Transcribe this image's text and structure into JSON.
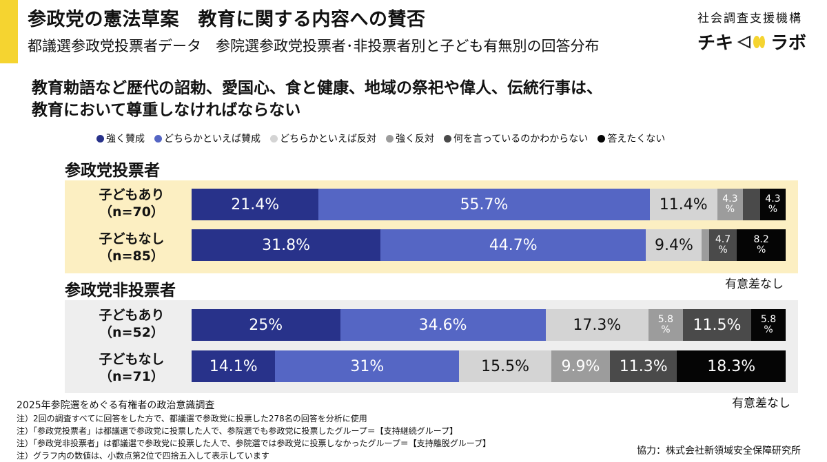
{
  "header": {
    "title": "参政党の憲法草案　教育に関する内容への賛否",
    "subtitle": "都議選参政党投票者データ　参院選参政党投票者･非投票者別と子ども有無別の回答分布"
  },
  "logo": {
    "org": "社会調査支援機構",
    "name_left": "チキ",
    "name_right": "ラボ"
  },
  "question": {
    "line1": "教育勅語など歴代の詔勅、愛国心、食と健康、地域の祭祀や偉人、伝統行事は、",
    "line2": "教育において尊重しなければならない"
  },
  "chart_data": {
    "type": "bar",
    "stacked": true,
    "orientation": "horizontal",
    "unit": "%",
    "legend": [
      {
        "label": "強く賛成",
        "color": "#28328a"
      },
      {
        "label": "どちらかといえば賛成",
        "color": "#5566c4"
      },
      {
        "label": "どちらかといえば反対",
        "color": "#d4d4d4"
      },
      {
        "label": "強く反対",
        "color": "#9c9c9c"
      },
      {
        "label": "何を言っているのかわからない",
        "color": "#4a4a4a"
      },
      {
        "label": "答えたくない",
        "color": "#050505"
      }
    ],
    "groups": [
      {
        "title": "参政党投票者",
        "significance": "有意差なし",
        "rows": [
          {
            "label1": "子どもあり",
            "label2": "（n=70）",
            "values": [
              21.4,
              55.7,
              11.4,
              4.3,
              2.9,
              4.3
            ],
            "labels": [
              "21.4%",
              "55.7%",
              "11.4%",
              "4.3\n%",
              "",
              "4.3\n%"
            ]
          },
          {
            "label1": "子どもなし",
            "label2": "（n=85）",
            "values": [
              31.8,
              44.7,
              9.4,
              1.2,
              4.7,
              8.2
            ],
            "labels": [
              "31.8%",
              "44.7%",
              "9.4%",
              "",
              "4.7\n%",
              "8.2\n%"
            ]
          }
        ]
      },
      {
        "title": "参政党非投票者",
        "significance": "有意差なし",
        "rows": [
          {
            "label1": "子どもあり",
            "label2": "（n=52）",
            "values": [
              25,
              34.6,
              17.3,
              5.8,
              11.5,
              5.8
            ],
            "labels": [
              "25%",
              "34.6%",
              "17.3%",
              "5.8\n%",
              "11.5%",
              "5.8\n%"
            ]
          },
          {
            "label1": "子どもなし",
            "label2": "（n=71）",
            "values": [
              14.1,
              31,
              15.5,
              9.9,
              11.3,
              18.3
            ],
            "labels": [
              "14.1%",
              "31%",
              "15.5%",
              "9.9%",
              "11.3%",
              "18.3%"
            ]
          }
        ]
      }
    ]
  },
  "footer": {
    "main": "2025年参院選をめぐる有権者の政治意識調査",
    "notes": [
      "注）2回の調査すべてに回答をした方で、都議選で参政党に投票した278名の回答を分析に使用",
      "注）「参政党投票者」は都議選で参政党に投票した人で、参院選でも参政党に投票したグループ＝【支持継続グループ】",
      "注）「参政党非投票者」は都議選で参政党に投票した人で、参院選では参政党に投票しなかったグループ＝【支持離脱グループ】",
      "注）グラフ内の数値は、小数点第2位で四捨五入して表示しています"
    ],
    "credit": "協力：株式会社新領域安全保障研究所"
  }
}
